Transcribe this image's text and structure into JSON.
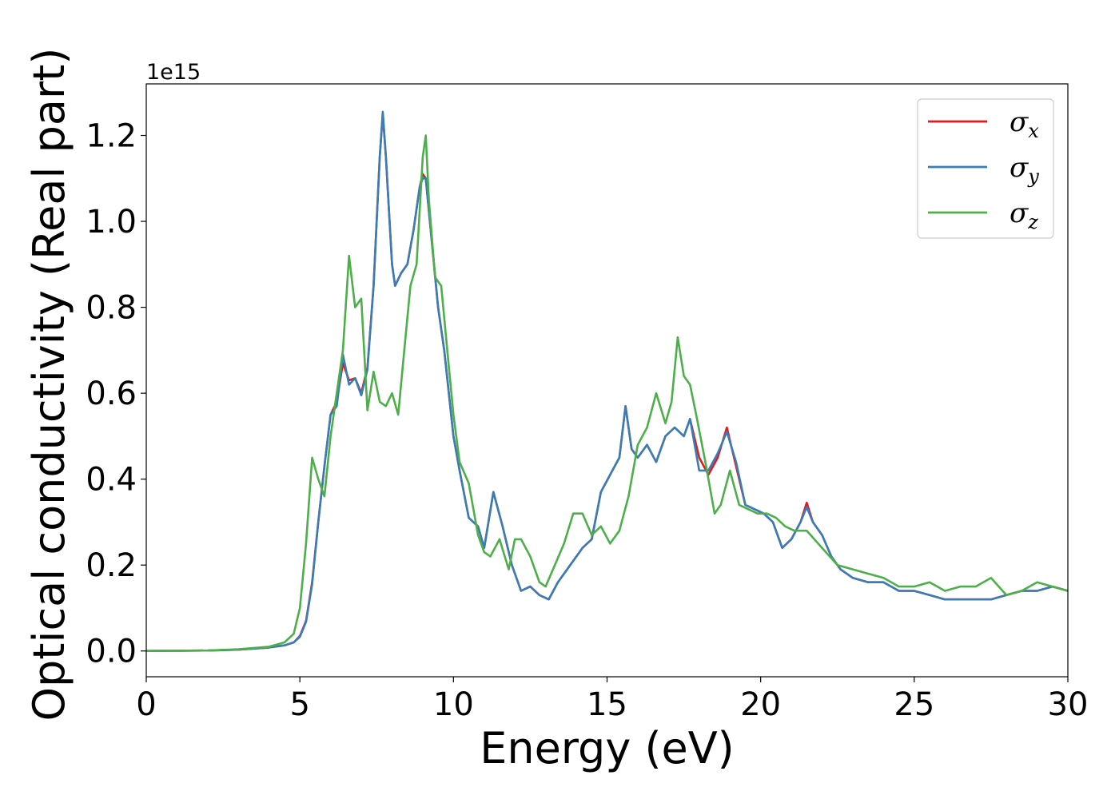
{
  "chart_data": {
    "type": "line",
    "xlabel": "Energy (eV)",
    "ylabel": "Optical conductivity (Real part)",
    "y_offset_label": "1e15",
    "y_scale": 1000000000000000.0,
    "xlim": [
      0,
      30
    ],
    "ylim": [
      -0.06,
      1.32
    ],
    "xticks": [
      0,
      5,
      10,
      15,
      20,
      25,
      30
    ],
    "yticks": [
      0.0,
      0.2,
      0.4,
      0.6,
      0.8,
      1.0,
      1.2
    ],
    "ytick_labels": [
      "0.0",
      "0.2",
      "0.4",
      "0.6",
      "0.8",
      "1.0",
      "1.2"
    ],
    "grid": false,
    "legend_position": "top-right",
    "series": [
      {
        "name": "σx",
        "color": "#e41a1c",
        "x": [
          0,
          2,
          3,
          4,
          4.5,
          4.8,
          5.0,
          5.2,
          5.4,
          5.6,
          5.8,
          6.0,
          6.2,
          6.4,
          6.6,
          6.8,
          7.0,
          7.2,
          7.4,
          7.6,
          7.7,
          7.8,
          8.0,
          8.1,
          8.3,
          8.5,
          8.7,
          8.9,
          9.0,
          9.1,
          9.3,
          9.5,
          9.7,
          10.0,
          10.2,
          10.5,
          10.8,
          11.0,
          11.3,
          11.6,
          11.9,
          12.2,
          12.5,
          12.8,
          13.1,
          13.4,
          13.8,
          14.2,
          14.5,
          14.8,
          15.1,
          15.4,
          15.6,
          15.8,
          16.0,
          16.3,
          16.6,
          16.9,
          17.2,
          17.5,
          17.7,
          18.0,
          18.3,
          18.6,
          18.9,
          19.2,
          19.5,
          19.8,
          20.1,
          20.4,
          20.7,
          21.0,
          21.3,
          21.5,
          21.7,
          22.0,
          22.3,
          22.6,
          23.0,
          23.5,
          24.0,
          24.5,
          25.0,
          25.5,
          26.0,
          26.5,
          27.0,
          27.5,
          28.0,
          28.5,
          29.0,
          29.5,
          30.0
        ],
        "values": [
          0.0,
          0.001,
          0.003,
          0.008,
          0.013,
          0.02,
          0.035,
          0.07,
          0.16,
          0.3,
          0.43,
          0.55,
          0.58,
          0.67,
          0.63,
          0.635,
          0.6,
          0.66,
          0.85,
          1.15,
          1.25,
          1.15,
          0.9,
          0.85,
          0.88,
          0.9,
          0.98,
          1.08,
          1.11,
          1.1,
          0.95,
          0.8,
          0.7,
          0.5,
          0.42,
          0.31,
          0.29,
          0.24,
          0.37,
          0.29,
          0.2,
          0.14,
          0.15,
          0.13,
          0.12,
          0.16,
          0.2,
          0.24,
          0.26,
          0.37,
          0.41,
          0.45,
          0.57,
          0.47,
          0.45,
          0.48,
          0.44,
          0.5,
          0.52,
          0.5,
          0.54,
          0.45,
          0.41,
          0.45,
          0.52,
          0.43,
          0.34,
          0.33,
          0.32,
          0.3,
          0.24,
          0.26,
          0.3,
          0.345,
          0.3,
          0.27,
          0.22,
          0.19,
          0.17,
          0.16,
          0.16,
          0.14,
          0.14,
          0.13,
          0.12,
          0.12,
          0.12,
          0.12,
          0.13,
          0.14,
          0.14,
          0.15,
          0.14
        ]
      },
      {
        "name": "σy",
        "color": "#377eb8",
        "x": [
          0,
          2,
          3,
          4,
          4.5,
          4.8,
          5.0,
          5.2,
          5.4,
          5.6,
          5.8,
          6.0,
          6.2,
          6.4,
          6.6,
          6.8,
          7.0,
          7.2,
          7.4,
          7.6,
          7.7,
          7.8,
          8.0,
          8.1,
          8.3,
          8.5,
          8.7,
          8.9,
          9.0,
          9.1,
          9.3,
          9.5,
          9.7,
          10.0,
          10.2,
          10.5,
          10.8,
          11.0,
          11.3,
          11.6,
          11.9,
          12.2,
          12.5,
          12.8,
          13.1,
          13.4,
          13.8,
          14.2,
          14.5,
          14.8,
          15.1,
          15.4,
          15.6,
          15.8,
          16.0,
          16.3,
          16.6,
          16.9,
          17.2,
          17.5,
          17.7,
          18.0,
          18.3,
          18.6,
          18.9,
          19.2,
          19.5,
          19.8,
          20.1,
          20.4,
          20.7,
          21.0,
          21.3,
          21.5,
          21.7,
          22.0,
          22.3,
          22.6,
          23.0,
          23.5,
          24.0,
          24.5,
          25.0,
          25.5,
          26.0,
          26.5,
          27.0,
          27.5,
          28.0,
          28.5,
          29.0,
          29.5,
          30.0
        ],
        "values": [
          0.0,
          0.001,
          0.003,
          0.008,
          0.013,
          0.02,
          0.033,
          0.068,
          0.155,
          0.3,
          0.43,
          0.55,
          0.57,
          0.69,
          0.62,
          0.635,
          0.595,
          0.655,
          0.85,
          1.15,
          1.255,
          1.15,
          0.9,
          0.85,
          0.88,
          0.9,
          0.98,
          1.08,
          1.1,
          1.1,
          0.95,
          0.8,
          0.7,
          0.5,
          0.42,
          0.31,
          0.29,
          0.24,
          0.37,
          0.29,
          0.2,
          0.14,
          0.15,
          0.13,
          0.12,
          0.16,
          0.2,
          0.24,
          0.26,
          0.37,
          0.41,
          0.45,
          0.57,
          0.47,
          0.45,
          0.48,
          0.44,
          0.5,
          0.52,
          0.5,
          0.54,
          0.42,
          0.42,
          0.46,
          0.51,
          0.44,
          0.34,
          0.33,
          0.32,
          0.3,
          0.24,
          0.26,
          0.3,
          0.335,
          0.3,
          0.27,
          0.22,
          0.19,
          0.17,
          0.16,
          0.16,
          0.14,
          0.14,
          0.13,
          0.12,
          0.12,
          0.12,
          0.12,
          0.13,
          0.14,
          0.14,
          0.15,
          0.14
        ]
      },
      {
        "name": "σz",
        "color": "#4daf4a",
        "x": [
          0,
          2,
          3,
          4,
          4.5,
          4.8,
          5.0,
          5.2,
          5.4,
          5.6,
          5.8,
          6.0,
          6.2,
          6.4,
          6.6,
          6.8,
          7.0,
          7.2,
          7.4,
          7.6,
          7.8,
          8.0,
          8.2,
          8.4,
          8.6,
          8.8,
          9.0,
          9.1,
          9.2,
          9.4,
          9.6,
          9.8,
          10.0,
          10.2,
          10.5,
          10.8,
          11.0,
          11.2,
          11.5,
          11.8,
          12.0,
          12.2,
          12.5,
          12.8,
          13.0,
          13.3,
          13.6,
          13.9,
          14.2,
          14.5,
          14.8,
          15.1,
          15.4,
          15.7,
          16.0,
          16.3,
          16.6,
          16.9,
          17.1,
          17.3,
          17.5,
          17.7,
          17.9,
          18.2,
          18.5,
          18.7,
          19.0,
          19.3,
          19.6,
          19.9,
          20.2,
          20.5,
          20.8,
          21.1,
          21.5,
          22.0,
          22.5,
          23.0,
          23.5,
          24.0,
          24.5,
          25.0,
          25.5,
          26.0,
          26.5,
          27.0,
          27.5,
          28.0,
          28.5,
          29.0,
          29.5,
          30.0
        ],
        "values": [
          0.0,
          0.001,
          0.004,
          0.01,
          0.02,
          0.04,
          0.1,
          0.25,
          0.45,
          0.4,
          0.36,
          0.5,
          0.6,
          0.7,
          0.92,
          0.8,
          0.82,
          0.56,
          0.65,
          0.58,
          0.57,
          0.6,
          0.55,
          0.7,
          0.85,
          0.9,
          1.15,
          1.2,
          1.05,
          0.87,
          0.85,
          0.7,
          0.55,
          0.44,
          0.39,
          0.27,
          0.23,
          0.22,
          0.26,
          0.19,
          0.26,
          0.26,
          0.22,
          0.16,
          0.15,
          0.2,
          0.25,
          0.32,
          0.32,
          0.27,
          0.29,
          0.25,
          0.28,
          0.36,
          0.48,
          0.52,
          0.6,
          0.53,
          0.58,
          0.73,
          0.64,
          0.62,
          0.55,
          0.44,
          0.32,
          0.34,
          0.42,
          0.34,
          0.33,
          0.32,
          0.32,
          0.31,
          0.29,
          0.28,
          0.28,
          0.24,
          0.2,
          0.19,
          0.18,
          0.17,
          0.15,
          0.15,
          0.16,
          0.14,
          0.15,
          0.15,
          0.17,
          0.13,
          0.14,
          0.16,
          0.15,
          0.14
        ]
      }
    ]
  }
}
